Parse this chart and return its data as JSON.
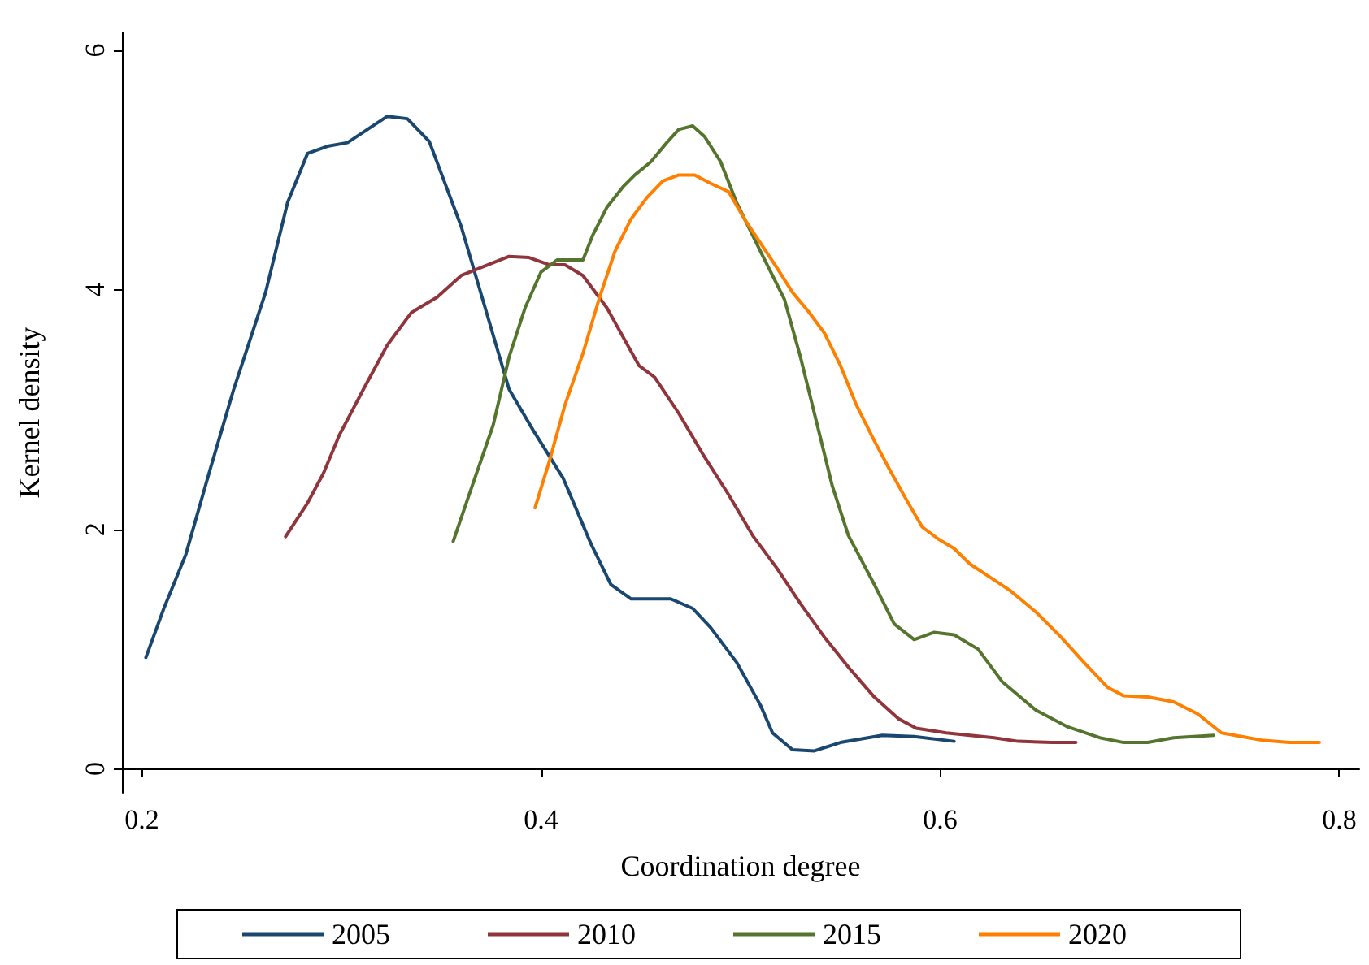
{
  "chart_data": {
    "type": "line",
    "xlabel": "Coordination degree",
    "ylabel": "Kernel density",
    "xlim": [
      0.19,
      0.81
    ],
    "ylim": [
      -0.2,
      6.15
    ],
    "xticks": [
      0.2,
      0.4,
      0.6,
      0.8
    ],
    "yticks": [
      0,
      2,
      4,
      6
    ],
    "grid": false,
    "legend": "bottom",
    "marker": "none",
    "line_style": "solid",
    "series": [
      {
        "name": "2005",
        "color": "#1a476f",
        "x": [
          0.202,
          0.211,
          0.222,
          0.234,
          0.246,
          0.262,
          0.273,
          0.283,
          0.293,
          0.303,
          0.313,
          0.323,
          0.333,
          0.344,
          0.36,
          0.372,
          0.384,
          0.396,
          0.411,
          0.425,
          0.435,
          0.445,
          0.465,
          0.476,
          0.485,
          0.498,
          0.51,
          0.516,
          0.526,
          0.537,
          0.55,
          0.571,
          0.587,
          0.607
        ],
        "values": [
          0.93,
          1.34,
          1.79,
          2.49,
          3.17,
          3.98,
          4.73,
          5.14,
          5.2,
          5.23,
          5.34,
          5.45,
          5.43,
          5.24,
          4.53,
          3.85,
          3.17,
          2.83,
          2.43,
          1.88,
          1.54,
          1.42,
          1.42,
          1.34,
          1.18,
          0.89,
          0.53,
          0.3,
          0.16,
          0.15,
          0.22,
          0.28,
          0.27,
          0.23
        ]
      },
      {
        "name": "2010",
        "color": "#90353b",
        "x": [
          0.272,
          0.283,
          0.291,
          0.299,
          0.311,
          0.323,
          0.335,
          0.348,
          0.36,
          0.372,
          0.384,
          0.394,
          0.404,
          0.412,
          0.421,
          0.433,
          0.449,
          0.457,
          0.469,
          0.481,
          0.494,
          0.506,
          0.518,
          0.53,
          0.542,
          0.555,
          0.567,
          0.579,
          0.588,
          0.603,
          0.615,
          0.627,
          0.639,
          0.656,
          0.668
        ],
        "values": [
          1.94,
          2.22,
          2.47,
          2.79,
          3.17,
          3.54,
          3.81,
          3.94,
          4.12,
          4.2,
          4.28,
          4.27,
          4.21,
          4.21,
          4.12,
          3.85,
          3.37,
          3.27,
          2.97,
          2.63,
          2.29,
          1.95,
          1.68,
          1.38,
          1.1,
          0.83,
          0.6,
          0.42,
          0.34,
          0.3,
          0.28,
          0.26,
          0.23,
          0.22,
          0.22
        ]
      },
      {
        "name": "2015",
        "color": "#55752f",
        "x": [
          0.356,
          0.364,
          0.376,
          0.384,
          0.392,
          0.4,
          0.408,
          0.421,
          0.426,
          0.433,
          0.441,
          0.447,
          0.455,
          0.463,
          0.469,
          0.476,
          0.482,
          0.49,
          0.498,
          0.51,
          0.522,
          0.53,
          0.538,
          0.546,
          0.554,
          0.567,
          0.577,
          0.587,
          0.597,
          0.607,
          0.619,
          0.631,
          0.648,
          0.664,
          0.68,
          0.692,
          0.704,
          0.717,
          0.737
        ],
        "values": [
          1.9,
          2.29,
          2.87,
          3.44,
          3.85,
          4.15,
          4.25,
          4.25,
          4.46,
          4.69,
          4.86,
          4.96,
          5.07,
          5.23,
          5.34,
          5.37,
          5.28,
          5.07,
          4.73,
          4.32,
          3.92,
          3.44,
          2.9,
          2.36,
          1.95,
          1.54,
          1.21,
          1.08,
          1.14,
          1.12,
          1.0,
          0.73,
          0.49,
          0.35,
          0.26,
          0.22,
          0.22,
          0.26,
          0.28
        ]
      },
      {
        "name": "2020",
        "color": "#ff8000",
        "x": [
          0.397,
          0.404,
          0.412,
          0.421,
          0.429,
          0.437,
          0.445,
          0.453,
          0.461,
          0.469,
          0.477,
          0.485,
          0.494,
          0.502,
          0.51,
          0.518,
          0.526,
          0.534,
          0.542,
          0.55,
          0.558,
          0.567,
          0.575,
          0.583,
          0.591,
          0.599,
          0.607,
          0.615,
          0.625,
          0.635,
          0.648,
          0.66,
          0.672,
          0.684,
          0.692,
          0.704,
          0.717,
          0.729,
          0.741,
          0.761,
          0.775,
          0.79
        ],
        "values": [
          2.18,
          2.56,
          3.04,
          3.47,
          3.92,
          4.32,
          4.59,
          4.77,
          4.91,
          4.96,
          4.96,
          4.89,
          4.82,
          4.59,
          4.39,
          4.19,
          3.98,
          3.82,
          3.64,
          3.37,
          3.04,
          2.74,
          2.49,
          2.25,
          2.02,
          1.92,
          1.84,
          1.71,
          1.6,
          1.49,
          1.31,
          1.11,
          0.89,
          0.68,
          0.61,
          0.6,
          0.56,
          0.46,
          0.3,
          0.24,
          0.22,
          0.22
        ]
      }
    ]
  }
}
